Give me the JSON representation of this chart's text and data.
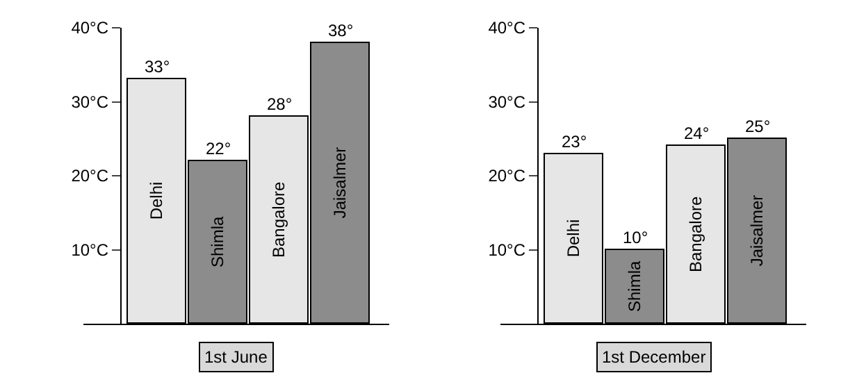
{
  "chart_data": [
    {
      "type": "bar",
      "xlabel": "1st June",
      "categories": [
        "Delhi",
        "Shimla",
        "Bangalore",
        "Jaisalmer"
      ],
      "values": [
        33,
        22,
        28,
        38
      ],
      "value_labels": [
        "33°",
        "22°",
        "28°",
        "38°"
      ],
      "colors": [
        "#e6e6e6",
        "#8c8c8c",
        "#e6e6e6",
        "#8c8c8c"
      ],
      "ylim": [
        0,
        40
      ],
      "yticks": [
        {
          "value": 10,
          "label": "10°C"
        },
        {
          "value": 20,
          "label": "20°C"
        },
        {
          "value": 30,
          "label": "30°C"
        },
        {
          "value": 40,
          "label": "40°C"
        }
      ]
    },
    {
      "type": "bar",
      "xlabel": "1st December",
      "categories": [
        "Delhi",
        "Shimla",
        "Bangalore",
        "Jaisalmer"
      ],
      "values": [
        23,
        10,
        24,
        25
      ],
      "value_labels": [
        "23°",
        "10°",
        "24°",
        "25°"
      ],
      "colors": [
        "#e6e6e6",
        "#8c8c8c",
        "#e6e6e6",
        "#8c8c8c"
      ],
      "ylim": [
        0,
        40
      ],
      "yticks": [
        {
          "value": 10,
          "label": "10°C"
        },
        {
          "value": 20,
          "label": "20°C"
        },
        {
          "value": 30,
          "label": "30°C"
        },
        {
          "value": 40,
          "label": "40°C"
        }
      ]
    }
  ]
}
